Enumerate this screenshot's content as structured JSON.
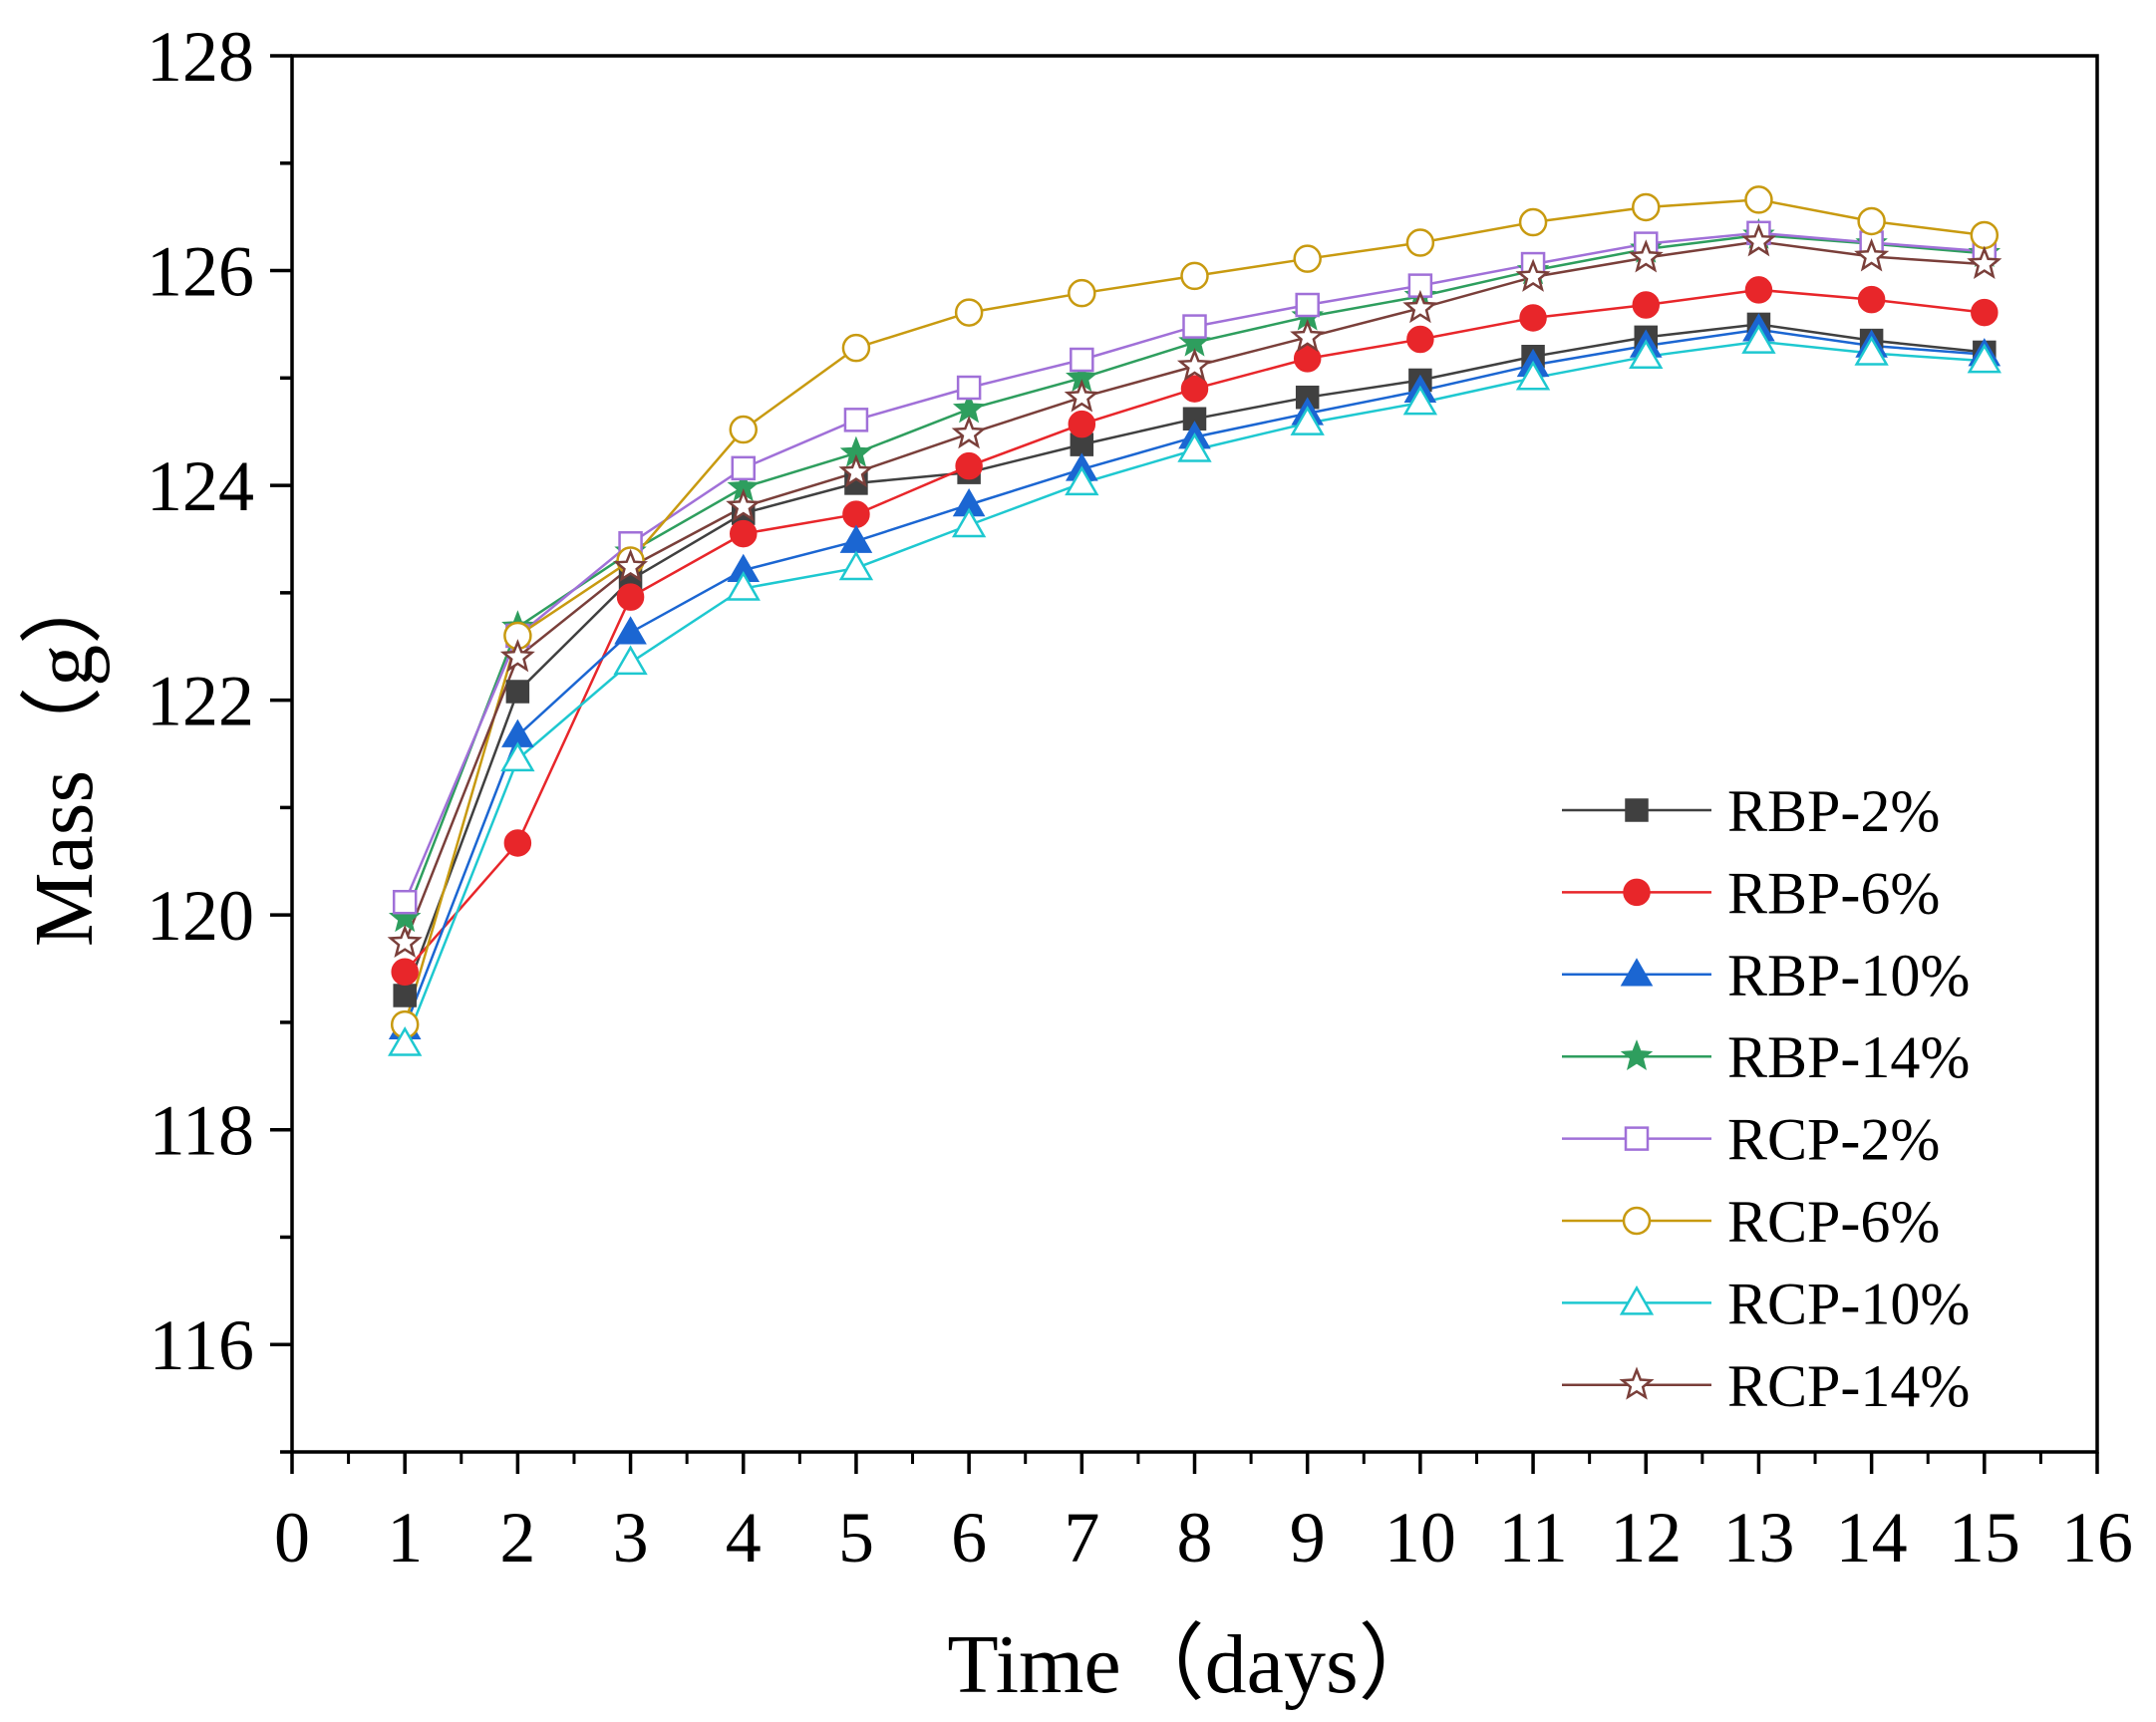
{
  "chart_data": {
    "type": "line",
    "title": "",
    "xlabel": "Time（days）",
    "ylabel": "Mass（g）",
    "xlim": [
      0,
      16
    ],
    "ylim": [
      115,
      128
    ],
    "xticks": [
      "0",
      "1",
      "2",
      "3",
      "4",
      "5",
      "6",
      "7",
      "8",
      "9",
      "10",
      "11",
      "12",
      "13",
      "14",
      "15",
      "16"
    ],
    "yticks": [
      "116",
      "118",
      "120",
      "122",
      "124",
      "126",
      "128"
    ],
    "grid": false,
    "legend_position": "bottom-right",
    "x": [
      1,
      2,
      3,
      4,
      5,
      6,
      7,
      8,
      9,
      10,
      11,
      12,
      13,
      14,
      15
    ],
    "series": [
      {
        "name": "RBP-2%",
        "color": "#404040",
        "marker": "square-filled",
        "values": [
          119.25,
          122.08,
          123.12,
          123.74,
          124.02,
          124.12,
          124.38,
          124.62,
          124.82,
          124.98,
          125.2,
          125.38,
          125.5,
          125.35,
          125.24
        ]
      },
      {
        "name": "RBP-6%",
        "color": "#e8262a",
        "marker": "circle-filled",
        "values": [
          119.47,
          120.67,
          122.96,
          123.55,
          123.73,
          124.18,
          124.57,
          124.9,
          125.18,
          125.36,
          125.56,
          125.68,
          125.82,
          125.73,
          125.61
        ]
      },
      {
        "name": "RBP-10%",
        "color": "#1b66d2",
        "marker": "triangle-filled",
        "values": [
          118.95,
          121.67,
          122.63,
          123.21,
          123.48,
          123.82,
          124.15,
          124.45,
          124.67,
          124.88,
          125.12,
          125.3,
          125.45,
          125.3,
          125.22
        ]
      },
      {
        "name": "RBP-14%",
        "color": "#2e9e5e",
        "marker": "star-filled",
        "values": [
          119.97,
          122.68,
          123.38,
          123.98,
          124.3,
          124.71,
          125.0,
          125.33,
          125.57,
          125.76,
          126.0,
          126.2,
          126.33,
          126.25,
          126.16
        ]
      },
      {
        "name": "RCP-2%",
        "color": "#a070d8",
        "marker": "square-open",
        "values": [
          120.12,
          122.6,
          123.46,
          124.16,
          124.61,
          124.91,
          125.17,
          125.48,
          125.68,
          125.86,
          126.06,
          126.25,
          126.35,
          126.26,
          126.18
        ]
      },
      {
        "name": "RCP-6%",
        "color": "#c89a10",
        "marker": "circle-open",
        "values": [
          118.98,
          122.6,
          123.3,
          124.52,
          125.28,
          125.61,
          125.79,
          125.95,
          126.11,
          126.26,
          126.45,
          126.59,
          126.66,
          126.46,
          126.33
        ]
      },
      {
        "name": "RCP-10%",
        "color": "#1ec8d0",
        "marker": "triangle-open",
        "values": [
          118.8,
          121.45,
          122.35,
          123.04,
          123.23,
          123.63,
          124.02,
          124.33,
          124.58,
          124.77,
          125.0,
          125.2,
          125.34,
          125.23,
          125.16
        ]
      },
      {
        "name": "RCP-14%",
        "color": "#7a3f3a",
        "marker": "star-open",
        "values": [
          119.74,
          122.4,
          123.24,
          123.8,
          124.12,
          124.48,
          124.82,
          125.11,
          125.38,
          125.65,
          125.94,
          126.12,
          126.27,
          126.13,
          126.06
        ]
      }
    ]
  }
}
